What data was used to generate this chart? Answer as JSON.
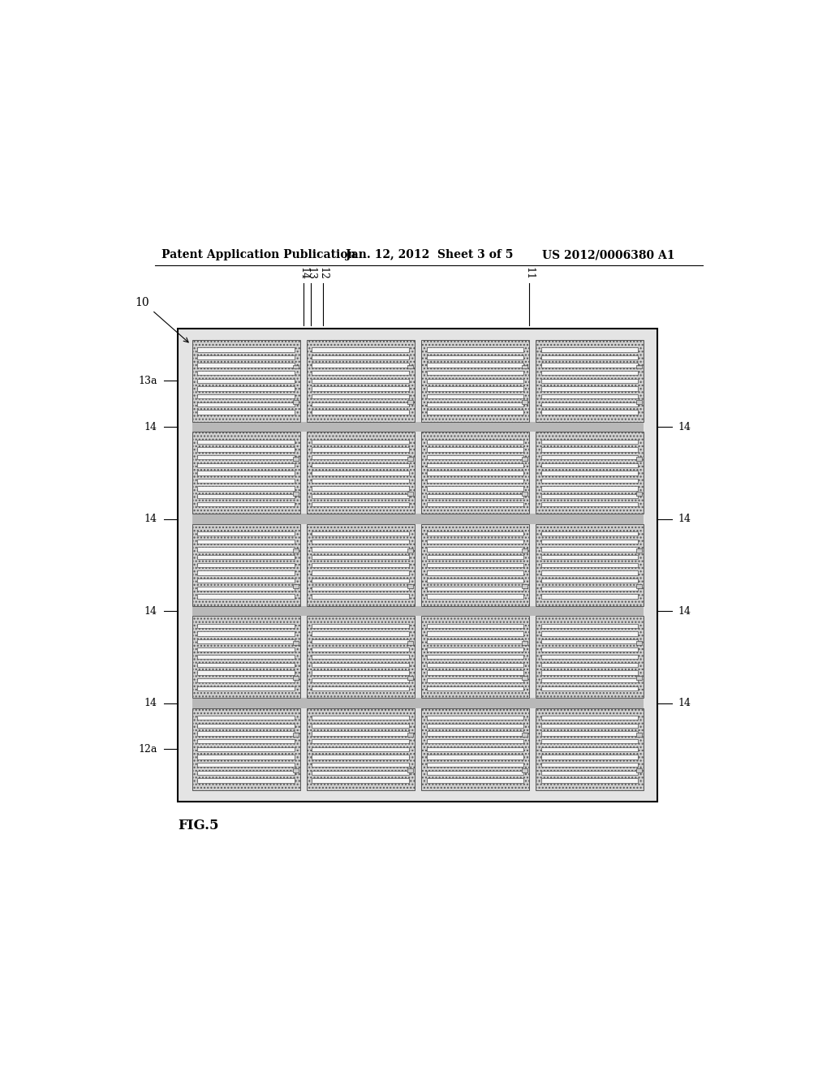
{
  "background_color": "#ffffff",
  "header_text": "Patent Application Publication",
  "header_date": "Jan. 12, 2012  Sheet 3 of 5",
  "header_patent": "US 2012/0006380 A1",
  "figure_label": "FIG.5",
  "label_10": "10",
  "label_11": "11",
  "label_12": "12",
  "label_13": "13",
  "label_14": "14",
  "label_13a": "13a",
  "label_12a": "12a",
  "num_rows": 5,
  "num_cols": 4,
  "num_fingers": 9
}
